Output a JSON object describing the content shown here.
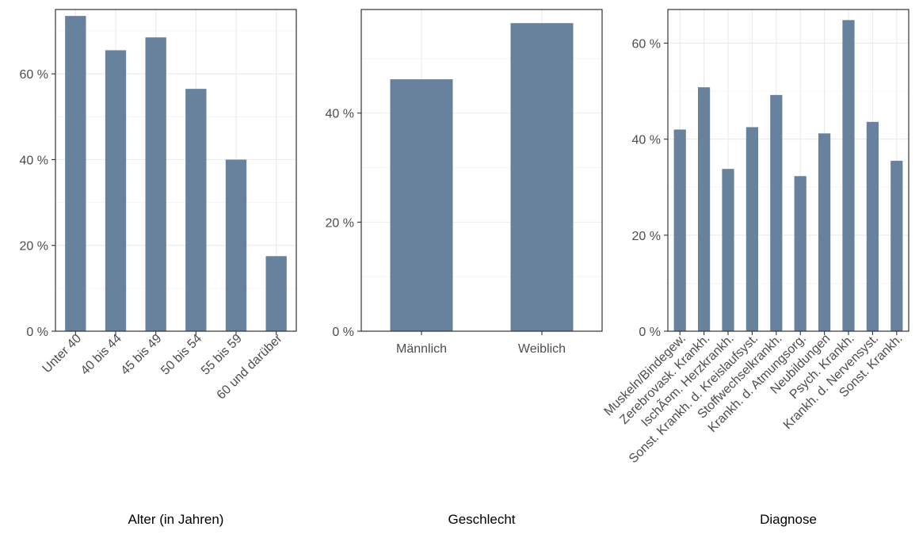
{
  "chart_data": [
    {
      "type": "bar",
      "xlabel": "Alter (in Jahren)",
      "ylabel": "",
      "categories": [
        "Unter 40",
        "40 bis 44",
        "45 bis 49",
        "50 bis 54",
        "55 bis 59",
        "60 und darüber"
      ],
      "values": [
        73.5,
        65.5,
        68.5,
        56.5,
        40.0,
        17.5
      ],
      "ylim": [
        0,
        75
      ],
      "yticks": [
        0,
        20,
        40,
        60
      ],
      "ytick_labels": [
        "0 %",
        "20 %",
        "40 %",
        "60 %"
      ],
      "grid": true,
      "bar_color": "#68829e"
    },
    {
      "type": "bar",
      "xlabel": "Geschlecht",
      "ylabel": "",
      "categories": [
        "Männlich",
        "Weiblich"
      ],
      "values": [
        46.2,
        56.5
      ],
      "ylim": [
        0,
        59
      ],
      "yticks": [
        0,
        20,
        40
      ],
      "ytick_labels": [
        "0 %",
        "20 %",
        "40 %"
      ],
      "grid": true,
      "bar_color": "#68829e"
    },
    {
      "type": "bar",
      "xlabel": "Diagnose",
      "ylabel": "",
      "categories": [
        "Muskeln/Bindegew.",
        "Zerebrovask. Krankh.",
        "IschÃ¤m. Herzkrankh.",
        "Sonst. Krankh. d. Kreislaufsyst.",
        "Stoffwechselkrankh.",
        "Krankh. d. Atmungsorg.",
        "Neubildungen",
        "Psych. Krankh.",
        "Krankh. d. Nervensyst.",
        "Sonst. Krankh."
      ],
      "values": [
        42.0,
        50.8,
        33.8,
        42.5,
        49.2,
        32.3,
        41.2,
        64.8,
        43.6,
        35.5
      ],
      "ylim": [
        0,
        67
      ],
      "yticks": [
        0,
        20,
        40,
        60
      ],
      "ytick_labels": [
        "0 %",
        "20 %",
        "40 %",
        "60 %"
      ],
      "grid": true,
      "bar_color": "#68829e"
    }
  ]
}
